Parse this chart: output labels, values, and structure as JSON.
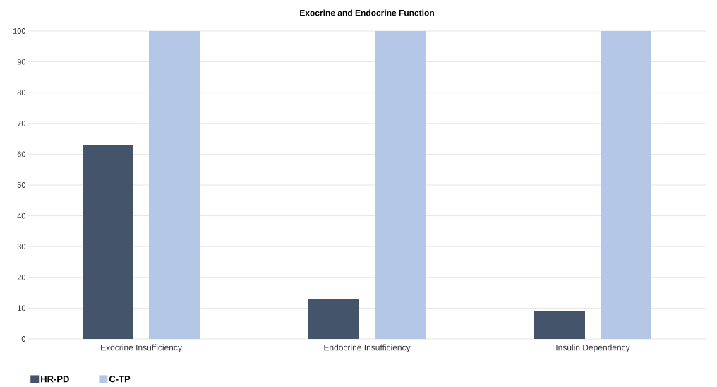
{
  "chart_data": {
    "type": "bar",
    "title": "Exocrine and Endocrine Function",
    "categories": [
      "Exocrine Insufficiency",
      "Endocrine Insufficiency",
      "Insulin Dependency"
    ],
    "series": [
      {
        "name": "HR-PD",
        "color": "#44546a",
        "values": [
          63,
          13,
          9
        ]
      },
      {
        "name": "C-TP",
        "color": "#b4c7e7",
        "values": [
          100,
          100,
          100
        ]
      }
    ],
    "ylim": [
      0,
      100
    ],
    "yticks": [
      0,
      10,
      20,
      30,
      40,
      50,
      60,
      70,
      80,
      90,
      100
    ],
    "grid": "y",
    "legend": "bottom left"
  }
}
